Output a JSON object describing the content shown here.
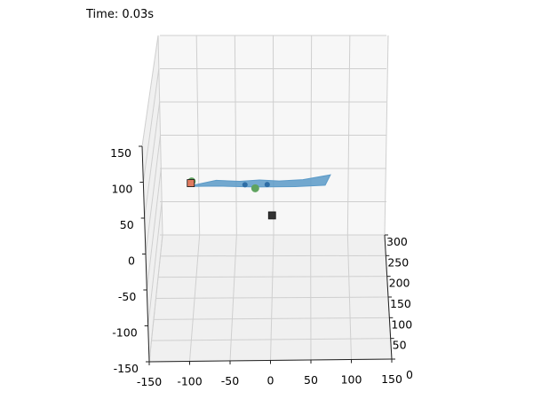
{
  "title": "Time: 0.03s",
  "chart_data": {
    "type": "scatter",
    "projection": "3d",
    "grid": true,
    "pane_color": "#f2f2f2",
    "xlim": [
      -150,
      150
    ],
    "ylim": [
      0,
      300
    ],
    "zlim": [
      -150,
      150
    ],
    "x_ticks": [
      -150,
      -100,
      -50,
      0,
      50,
      100,
      150
    ],
    "y_ticks": [
      0,
      50,
      100,
      150,
      200,
      250,
      300
    ],
    "z_ticks": [
      -150,
      -100,
      -50,
      0,
      50,
      100,
      150
    ],
    "surface": {
      "color": "#5b9ac8",
      "outline_xy": [
        [
          -105,
          60
        ],
        [
          -70,
          85
        ],
        [
          -40,
          80
        ],
        [
          -15,
          85
        ],
        [
          10,
          80
        ],
        [
          40,
          85
        ],
        [
          75,
          105
        ],
        [
          68,
          60
        ],
        [
          30,
          55
        ],
        [
          -20,
          55
        ],
        [
          -65,
          60
        ]
      ],
      "z": 92
    },
    "series": [
      {
        "marker": "square",
        "color": "#333333",
        "points": [
          [
            0,
            150,
            0
          ]
        ]
      },
      {
        "marker": "circle",
        "color": "#5fa35f",
        "points": [
          [
            -100,
            60,
            100
          ],
          [
            -20,
            60,
            88
          ]
        ]
      },
      {
        "marker": "circle",
        "color": "#2e6ea6",
        "points": [
          [
            -33,
            65,
            92
          ],
          [
            -5,
            65,
            92
          ]
        ]
      },
      {
        "marker": "square",
        "color": "#e07a5f",
        "points": [
          [
            -101,
            58,
            98
          ]
        ]
      }
    ]
  }
}
